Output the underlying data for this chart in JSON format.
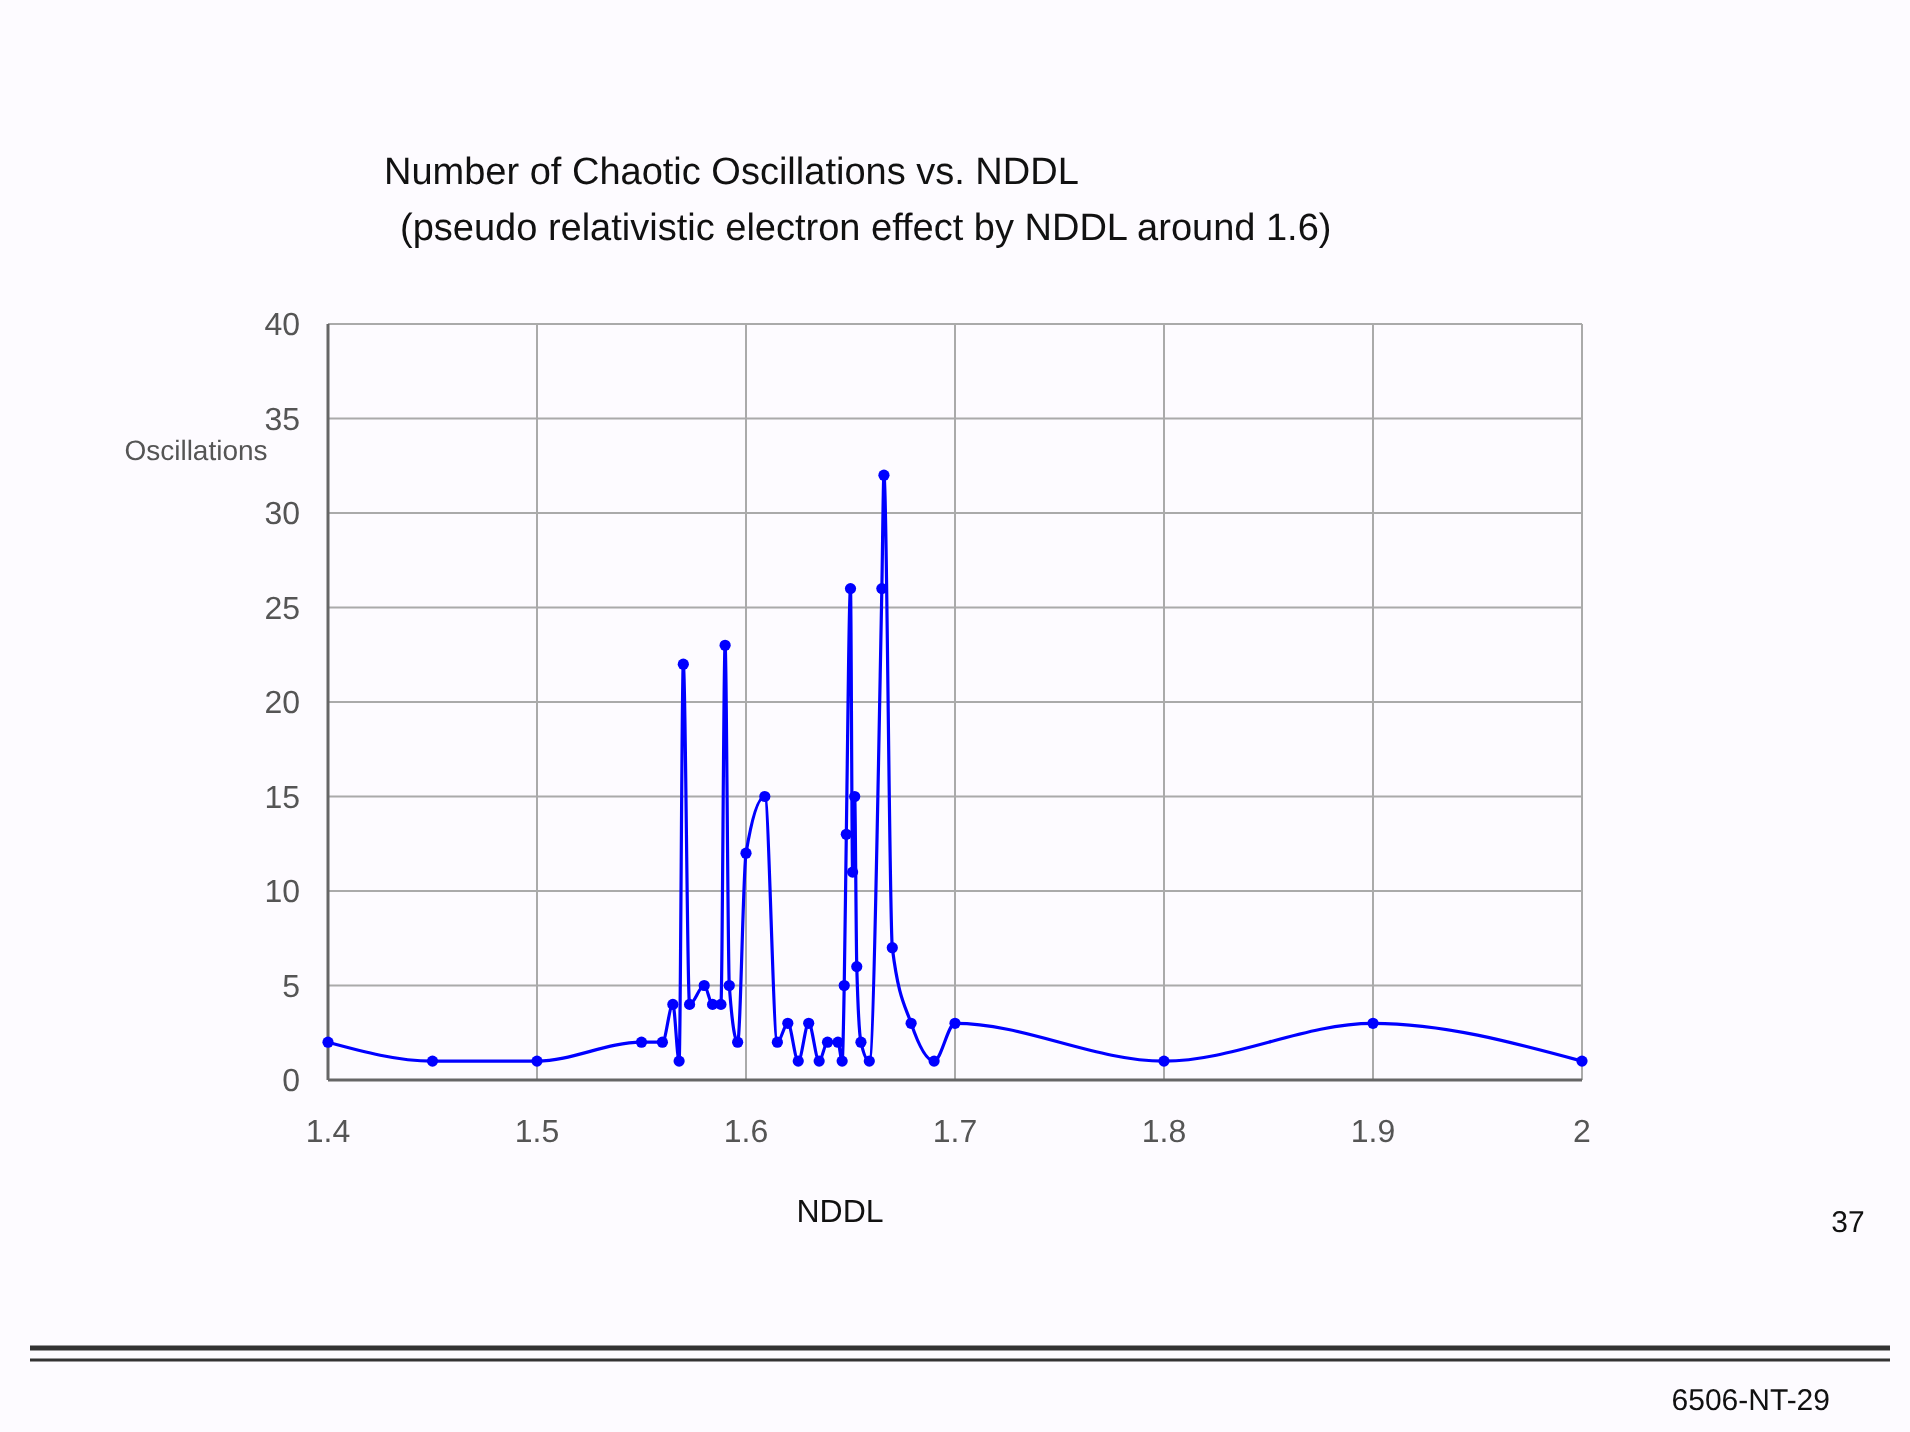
{
  "chart_data": {
    "type": "line",
    "title": "Number of Chaotic Oscillations vs. NDDL",
    "subtitle": "(pseudo relativistic  electron effect by NDDL around 1.6)",
    "xlabel": "NDDL",
    "ylabel": "Oscillations",
    "annotations": [
      "37",
      "6506-NT-29"
    ],
    "series": [
      {
        "color": "#0000ff",
        "x": [
          1.4,
          1.45,
          1.5,
          1.55,
          1.56,
          1.565,
          1.568,
          1.57,
          1.573,
          1.58,
          1.584,
          1.588,
          1.59,
          1.592,
          1.596,
          1.6,
          1.609,
          1.615,
          1.62,
          1.625,
          1.63,
          1.635,
          1.639,
          1.644,
          1.646,
          1.647,
          1.648,
          1.65,
          1.651,
          1.652,
          1.653,
          1.655,
          1.659,
          1.665,
          1.666,
          1.67,
          1.679,
          1.69,
          1.7,
          1.8,
          1.9,
          2.0
        ],
        "values": [
          2,
          1,
          1,
          2,
          2,
          4,
          1,
          22,
          4,
          5,
          4,
          4,
          23,
          5,
          2,
          12,
          15,
          2,
          3,
          1,
          3,
          1,
          2,
          2,
          1,
          5,
          13,
          26,
          11,
          15,
          6,
          2,
          1,
          26,
          32,
          7,
          3,
          1,
          3,
          1,
          3,
          1
        ]
      }
    ],
    "xlim": [
      1.4,
      2.0
    ],
    "xticks": [
      1.4,
      1.5,
      1.6,
      1.7,
      1.8,
      1.9,
      {
        "value": 2.0,
        "label": "2"
      }
    ],
    "ylim": [
      0,
      40
    ],
    "yticks": [
      0,
      5,
      10,
      15,
      20,
      25,
      30,
      35,
      40
    ],
    "grid": true,
    "marker": "circle",
    "line_style": "solid"
  }
}
